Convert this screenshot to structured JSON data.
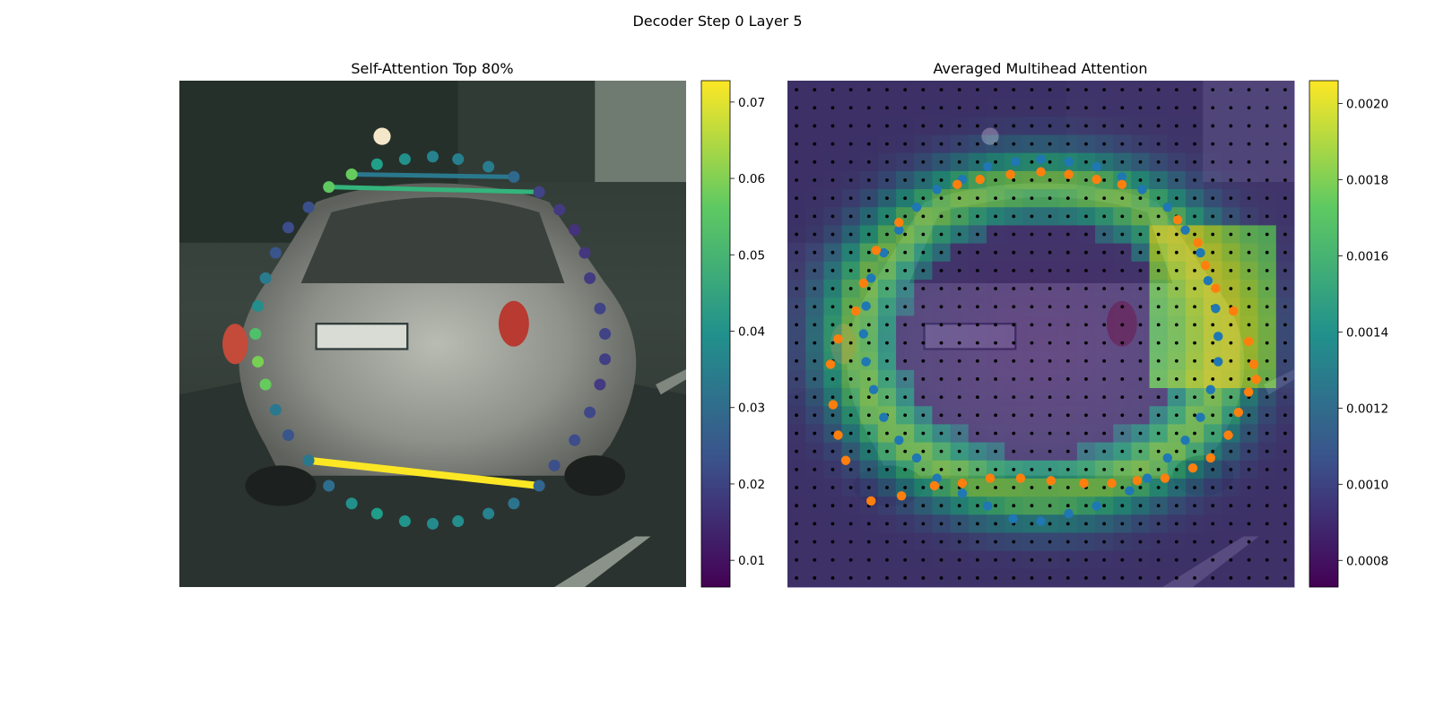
{
  "figure": {
    "suptitle": "Decoder Step 0 Layer 5"
  },
  "chart_data": [
    {
      "type": "scatter",
      "title": "Self-Attention Top 80%",
      "background": "photo of a silver hatchback car seen from behind on a dark street",
      "colormap": "viridis",
      "colorbar": {
        "min": 0.0065,
        "max": 0.0728,
        "ticks": [
          0.01,
          0.02,
          0.03,
          0.04,
          0.05,
          0.06,
          0.07
        ],
        "tick_labels": [
          "0.01",
          "0.02",
          "0.03",
          "0.04",
          "0.05",
          "0.06",
          "0.07"
        ]
      },
      "axes_visible": false,
      "points": [
        {
          "x": 0.5,
          "y": 0.15,
          "v": 0.036
        },
        {
          "x": 0.55,
          "y": 0.155,
          "v": 0.035
        },
        {
          "x": 0.61,
          "y": 0.17,
          "v": 0.034
        },
        {
          "x": 0.66,
          "y": 0.19,
          "v": 0.029
        },
        {
          "x": 0.71,
          "y": 0.22,
          "v": 0.02
        },
        {
          "x": 0.75,
          "y": 0.255,
          "v": 0.018
        },
        {
          "x": 0.78,
          "y": 0.295,
          "v": 0.016
        },
        {
          "x": 0.8,
          "y": 0.34,
          "v": 0.017
        },
        {
          "x": 0.81,
          "y": 0.39,
          "v": 0.018
        },
        {
          "x": 0.83,
          "y": 0.45,
          "v": 0.02
        },
        {
          "x": 0.84,
          "y": 0.5,
          "v": 0.02
        },
        {
          "x": 0.84,
          "y": 0.55,
          "v": 0.019
        },
        {
          "x": 0.83,
          "y": 0.6,
          "v": 0.018
        },
        {
          "x": 0.81,
          "y": 0.655,
          "v": 0.021
        },
        {
          "x": 0.78,
          "y": 0.71,
          "v": 0.022
        },
        {
          "x": 0.74,
          "y": 0.76,
          "v": 0.023
        },
        {
          "x": 0.71,
          "y": 0.8,
          "v": 0.028
        },
        {
          "x": 0.66,
          "y": 0.835,
          "v": 0.032
        },
        {
          "x": 0.61,
          "y": 0.855,
          "v": 0.036
        },
        {
          "x": 0.55,
          "y": 0.87,
          "v": 0.039
        },
        {
          "x": 0.5,
          "y": 0.875,
          "v": 0.038
        },
        {
          "x": 0.445,
          "y": 0.87,
          "v": 0.041
        },
        {
          "x": 0.39,
          "y": 0.855,
          "v": 0.043
        },
        {
          "x": 0.34,
          "y": 0.835,
          "v": 0.04
        },
        {
          "x": 0.295,
          "y": 0.8,
          "v": 0.03
        },
        {
          "x": 0.255,
          "y": 0.75,
          "v": 0.033
        },
        {
          "x": 0.215,
          "y": 0.7,
          "v": 0.024
        },
        {
          "x": 0.19,
          "y": 0.65,
          "v": 0.033
        },
        {
          "x": 0.17,
          "y": 0.6,
          "v": 0.057
        },
        {
          "x": 0.155,
          "y": 0.555,
          "v": 0.059
        },
        {
          "x": 0.15,
          "y": 0.5,
          "v": 0.054
        },
        {
          "x": 0.155,
          "y": 0.445,
          "v": 0.039
        },
        {
          "x": 0.17,
          "y": 0.39,
          "v": 0.034
        },
        {
          "x": 0.19,
          "y": 0.34,
          "v": 0.024
        },
        {
          "x": 0.215,
          "y": 0.29,
          "v": 0.022
        },
        {
          "x": 0.255,
          "y": 0.25,
          "v": 0.023
        },
        {
          "x": 0.295,
          "y": 0.21,
          "v": 0.056
        },
        {
          "x": 0.34,
          "y": 0.185,
          "v": 0.057
        },
        {
          "x": 0.39,
          "y": 0.165,
          "v": 0.044
        },
        {
          "x": 0.445,
          "y": 0.155,
          "v": 0.04
        }
      ],
      "edges": [
        {
          "from": [
            0.34,
            0.185
          ],
          "to": [
            0.66,
            0.19
          ],
          "v": 0.033,
          "w": 5
        },
        {
          "from": [
            0.295,
            0.21
          ],
          "to": [
            0.71,
            0.22
          ],
          "v": 0.05,
          "w": 5
        },
        {
          "from": [
            0.255,
            0.75
          ],
          "to": [
            0.71,
            0.8
          ],
          "v": 0.0728,
          "w": 8
        }
      ]
    },
    {
      "type": "heatmap",
      "title": "Averaged Multihead Attention",
      "background": "photo of a silver hatchback car seen from behind on a dark street",
      "colormap": "viridis",
      "colorbar": {
        "min": 0.00073,
        "max": 0.00206,
        "ticks": [
          0.0008,
          0.001,
          0.0012,
          0.0014,
          0.0016,
          0.0018,
          0.002
        ],
        "tick_labels": [
          "0.0008",
          "0.0010",
          "0.0012",
          "0.0014",
          "0.0016",
          "0.0018",
          "0.0020"
        ]
      },
      "axes_visible": false,
      "grid_cells": 28,
      "grid_dots": true,
      "heat_model": {
        "cx": 0.5,
        "cy": 0.51,
        "rx": 0.365,
        "ry": 0.305,
        "ring_width": 0.085,
        "ring_peak": 0.0018,
        "base": 0.00092,
        "inner": 0.00085,
        "hot_region": [
          0.7,
          0.3,
          0.97,
          0.62
        ],
        "hot_peak": 0.002
      },
      "series": [
        {
          "name": "",
          "color": "#1f77b4",
          "points": [
            [
              0.345,
              0.195
            ],
            [
              0.395,
              0.17
            ],
            [
              0.45,
              0.16
            ],
            [
              0.5,
              0.155
            ],
            [
              0.555,
              0.16
            ],
            [
              0.61,
              0.17
            ],
            [
              0.66,
              0.19
            ],
            [
              0.7,
              0.215
            ],
            [
              0.75,
              0.25
            ],
            [
              0.785,
              0.295
            ],
            [
              0.815,
              0.34
            ],
            [
              0.83,
              0.395
            ],
            [
              0.845,
              0.45
            ],
            [
              0.85,
              0.505
            ],
            [
              0.85,
              0.555
            ],
            [
              0.835,
              0.61
            ],
            [
              0.815,
              0.665
            ],
            [
              0.785,
              0.71
            ],
            [
              0.75,
              0.745
            ],
            [
              0.71,
              0.785
            ],
            [
              0.675,
              0.81
            ],
            [
              0.61,
              0.84
            ],
            [
              0.555,
              0.855
            ],
            [
              0.5,
              0.87
            ],
            [
              0.445,
              0.865
            ],
            [
              0.395,
              0.84
            ],
            [
              0.345,
              0.815
            ],
            [
              0.295,
              0.785
            ],
            [
              0.255,
              0.745
            ],
            [
              0.22,
              0.71
            ],
            [
              0.19,
              0.665
            ],
            [
              0.17,
              0.61
            ],
            [
              0.155,
              0.555
            ],
            [
              0.15,
              0.5
            ],
            [
              0.155,
              0.445
            ],
            [
              0.165,
              0.39
            ],
            [
              0.19,
              0.34
            ],
            [
              0.22,
              0.295
            ],
            [
              0.255,
              0.25
            ],
            [
              0.295,
              0.215
            ]
          ]
        },
        {
          "name": "",
          "color": "#ff7f0e",
          "points": [
            [
              0.335,
              0.205
            ],
            [
              0.38,
              0.195
            ],
            [
              0.44,
              0.185
            ],
            [
              0.5,
              0.18
            ],
            [
              0.555,
              0.185
            ],
            [
              0.61,
              0.195
            ],
            [
              0.66,
              0.205
            ],
            [
              0.77,
              0.275
            ],
            [
              0.81,
              0.32
            ],
            [
              0.825,
              0.365
            ],
            [
              0.845,
              0.41
            ],
            [
              0.88,
              0.455
            ],
            [
              0.91,
              0.515
            ],
            [
              0.92,
              0.56
            ],
            [
              0.925,
              0.59
            ],
            [
              0.91,
              0.615
            ],
            [
              0.89,
              0.655
            ],
            [
              0.87,
              0.7
            ],
            [
              0.835,
              0.745
            ],
            [
              0.8,
              0.765
            ],
            [
              0.745,
              0.785
            ],
            [
              0.69,
              0.79
            ],
            [
              0.64,
              0.795
            ],
            [
              0.585,
              0.795
            ],
            [
              0.52,
              0.79
            ],
            [
              0.46,
              0.785
            ],
            [
              0.4,
              0.785
            ],
            [
              0.345,
              0.795
            ],
            [
              0.29,
              0.8
            ],
            [
              0.225,
              0.82
            ],
            [
              0.165,
              0.83
            ],
            [
              0.115,
              0.75
            ],
            [
              0.1,
              0.7
            ],
            [
              0.09,
              0.64
            ],
            [
              0.085,
              0.56
            ],
            [
              0.1,
              0.51
            ],
            [
              0.135,
              0.455
            ],
            [
              0.15,
              0.4
            ],
            [
              0.175,
              0.335
            ],
            [
              0.22,
              0.28
            ]
          ]
        }
      ]
    }
  ]
}
